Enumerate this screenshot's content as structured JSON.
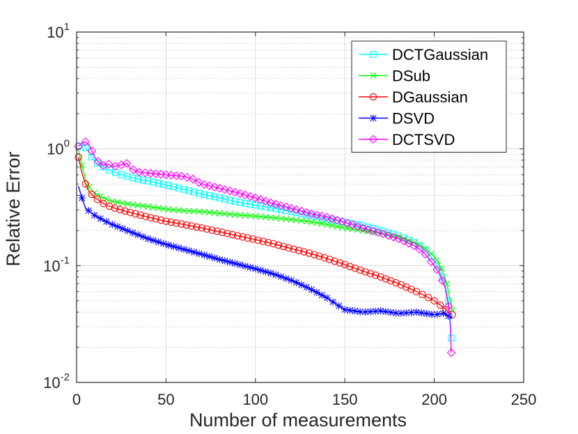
{
  "chart_data": {
    "type": "line",
    "title": "",
    "xlabel": "Number of measurements",
    "ylabel": "Relative Error",
    "xlim": [
      0,
      250
    ],
    "ylim": [
      0.01,
      10
    ],
    "yscale": "log",
    "grid": true,
    "legend_position": "top-right",
    "x_ticks": [
      {
        "value": 0,
        "label": "0"
      },
      {
        "value": 50,
        "label": "50"
      },
      {
        "value": 100,
        "label": "100"
      },
      {
        "value": 150,
        "label": "150"
      },
      {
        "value": 200,
        "label": "200"
      },
      {
        "value": 250,
        "label": "250"
      }
    ],
    "y_ticks": [
      {
        "value": 0.01,
        "base": "10",
        "exp": "-2"
      },
      {
        "value": 0.1,
        "base": "10",
        "exp": "-1"
      },
      {
        "value": 1,
        "base": "10",
        "exp": "0"
      },
      {
        "value": 10,
        "base": "10",
        "exp": "1"
      }
    ],
    "series": [
      {
        "name": "DCTGaussian",
        "color": "#00ffff",
        "marker": "square",
        "points": [
          [
            1,
            1.05
          ],
          [
            3,
            1.12
          ],
          [
            5,
            1.02
          ],
          [
            7,
            0.93
          ],
          [
            10,
            0.78
          ],
          [
            15,
            0.7
          ],
          [
            20,
            0.64
          ],
          [
            25,
            0.6
          ],
          [
            30,
            0.57
          ],
          [
            40,
            0.53
          ],
          [
            50,
            0.49
          ],
          [
            60,
            0.45
          ],
          [
            70,
            0.41
          ],
          [
            80,
            0.38
          ],
          [
            90,
            0.35
          ],
          [
            100,
            0.33
          ],
          [
            110,
            0.31
          ],
          [
            120,
            0.29
          ],
          [
            130,
            0.27
          ],
          [
            140,
            0.25
          ],
          [
            150,
            0.235
          ],
          [
            160,
            0.22
          ],
          [
            170,
            0.2
          ],
          [
            180,
            0.18
          ],
          [
            190,
            0.155
          ],
          [
            195,
            0.135
          ],
          [
            200,
            0.11
          ],
          [
            203,
            0.09
          ],
          [
            206,
            0.07
          ],
          [
            208,
            0.05
          ],
          [
            209,
            0.035
          ],
          [
            209.5,
            0.024
          ]
        ]
      },
      {
        "name": "DSub",
        "color": "#00ff00",
        "marker": "x",
        "points": [
          [
            1,
            0.98
          ],
          [
            3,
            0.72
          ],
          [
            5,
            0.55
          ],
          [
            7,
            0.47
          ],
          [
            10,
            0.42
          ],
          [
            15,
            0.38
          ],
          [
            20,
            0.355
          ],
          [
            30,
            0.335
          ],
          [
            40,
            0.32
          ],
          [
            50,
            0.305
          ],
          [
            60,
            0.295
          ],
          [
            70,
            0.29
          ],
          [
            80,
            0.28
          ],
          [
            90,
            0.272
          ],
          [
            100,
            0.265
          ],
          [
            110,
            0.257
          ],
          [
            120,
            0.248
          ],
          [
            130,
            0.238
          ],
          [
            140,
            0.225
          ],
          [
            150,
            0.21
          ],
          [
            160,
            0.2
          ],
          [
            170,
            0.19
          ],
          [
            180,
            0.175
          ],
          [
            190,
            0.155
          ],
          [
            195,
            0.14
          ],
          [
            200,
            0.12
          ],
          [
            204,
            0.095
          ],
          [
            207,
            0.07
          ],
          [
            209,
            0.05
          ],
          [
            210,
            0.042
          ]
        ]
      },
      {
        "name": "DGaussian",
        "color": "#ff0000",
        "marker": "circle",
        "points": [
          [
            1,
            0.85
          ],
          [
            3,
            0.62
          ],
          [
            5,
            0.5
          ],
          [
            7,
            0.43
          ],
          [
            10,
            0.385
          ],
          [
            15,
            0.34
          ],
          [
            20,
            0.315
          ],
          [
            30,
            0.285
          ],
          [
            40,
            0.26
          ],
          [
            50,
            0.24
          ],
          [
            60,
            0.225
          ],
          [
            70,
            0.21
          ],
          [
            80,
            0.195
          ],
          [
            90,
            0.18
          ],
          [
            100,
            0.167
          ],
          [
            110,
            0.154
          ],
          [
            120,
            0.14
          ],
          [
            130,
            0.128
          ],
          [
            140,
            0.115
          ],
          [
            150,
            0.102
          ],
          [
            160,
            0.09
          ],
          [
            170,
            0.08
          ],
          [
            180,
            0.07
          ],
          [
            190,
            0.06
          ],
          [
            195,
            0.055
          ],
          [
            200,
            0.05
          ],
          [
            205,
            0.044
          ],
          [
            208,
            0.04
          ],
          [
            210,
            0.038
          ]
        ]
      },
      {
        "name": "DSVD",
        "color": "#0000ff",
        "marker": "asterisk",
        "points": [
          [
            1,
            0.48
          ],
          [
            3,
            0.38
          ],
          [
            5,
            0.31
          ],
          [
            10,
            0.27
          ],
          [
            15,
            0.245
          ],
          [
            20,
            0.225
          ],
          [
            30,
            0.195
          ],
          [
            40,
            0.17
          ],
          [
            50,
            0.152
          ],
          [
            60,
            0.138
          ],
          [
            70,
            0.125
          ],
          [
            80,
            0.113
          ],
          [
            90,
            0.103
          ],
          [
            100,
            0.094
          ],
          [
            110,
            0.085
          ],
          [
            120,
            0.075
          ],
          [
            130,
            0.064
          ],
          [
            140,
            0.053
          ],
          [
            145,
            0.047
          ],
          [
            150,
            0.042
          ],
          [
            160,
            0.04
          ],
          [
            170,
            0.041
          ],
          [
            180,
            0.039
          ],
          [
            190,
            0.04
          ],
          [
            200,
            0.038
          ],
          [
            205,
            0.039
          ],
          [
            208,
            0.037
          ],
          [
            210,
            0.036
          ]
        ]
      },
      {
        "name": "DCTSVD",
        "color": "#ff00ff",
        "marker": "diamond",
        "points": [
          [
            1,
            1.05
          ],
          [
            3,
            1.12
          ],
          [
            5,
            1.15
          ],
          [
            7,
            1.08
          ],
          [
            10,
            0.85
          ],
          [
            12,
            0.78
          ],
          [
            15,
            0.72
          ],
          [
            18,
            0.74
          ],
          [
            20,
            0.7
          ],
          [
            25,
            0.73
          ],
          [
            28,
            0.75
          ],
          [
            30,
            0.68
          ],
          [
            35,
            0.63
          ],
          [
            40,
            0.62
          ],
          [
            50,
            0.6
          ],
          [
            60,
            0.58
          ],
          [
            65,
            0.55
          ],
          [
            70,
            0.5
          ],
          [
            80,
            0.46
          ],
          [
            90,
            0.42
          ],
          [
            100,
            0.38
          ],
          [
            110,
            0.34
          ],
          [
            120,
            0.31
          ],
          [
            130,
            0.28
          ],
          [
            140,
            0.26
          ],
          [
            150,
            0.235
          ],
          [
            160,
            0.21
          ],
          [
            170,
            0.19
          ],
          [
            180,
            0.17
          ],
          [
            190,
            0.145
          ],
          [
            195,
            0.125
          ],
          [
            200,
            0.1
          ],
          [
            203,
            0.085
          ],
          [
            206,
            0.065
          ],
          [
            208,
            0.045
          ],
          [
            209,
            0.03
          ],
          [
            209.5,
            0.018
          ]
        ]
      }
    ]
  }
}
